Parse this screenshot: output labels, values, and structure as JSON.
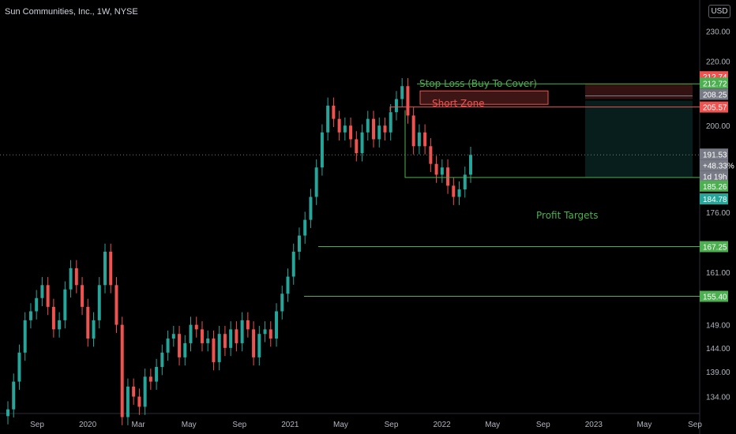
{
  "header": {
    "title": "Sun Communities, Inc., 1W, NYSE",
    "currency": "USD"
  },
  "colors": {
    "bull": "#26a69a",
    "bear": "#ef5350",
    "line": "#4caf50",
    "zone_red": "#ef5350",
    "bg": "#000000"
  },
  "annotations": {
    "stop_loss": "Stop Loss (Buy To Cover)",
    "short_zone": "Short Zone",
    "profit_targets": "Profit Targets"
  },
  "axis": {
    "price_ticks": [
      "230.00",
      "220.00",
      "200.00",
      "176.00",
      "161.00",
      "149.00",
      "144.00",
      "139.00",
      "134.00"
    ],
    "time_ticks": [
      "Sep",
      "2020",
      "Mar",
      "May",
      "Sep",
      "2021",
      "May",
      "Sep",
      "2022",
      "May",
      "Sep",
      "2023",
      "May",
      "Sep"
    ]
  },
  "price_labels": [
    {
      "text": "212.74",
      "color": "#ef5350"
    },
    {
      "text": "212.72",
      "color": "#4caf50"
    },
    {
      "text": "208.25",
      "color": "#787b86"
    },
    {
      "text": "205.57",
      "color": "#ef5350"
    },
    {
      "text": "191.53",
      "color": "#787b86"
    },
    {
      "text": "+48.33%",
      "color": "#787b86"
    },
    {
      "text": "1d 19h",
      "color": "#787b86"
    },
    {
      "text": "185.26",
      "color": "#4caf50"
    },
    {
      "text": "184.78",
      "color": "#26a69a"
    },
    {
      "text": "167.25",
      "color": "#4caf50"
    },
    {
      "text": "155.40",
      "color": "#4caf50"
    }
  ],
  "chart_data": {
    "type": "candlestick",
    "title": "Sun Communities, Inc., 1W, NYSE",
    "y_scale": "log",
    "ylim": [
      131,
      238
    ],
    "x": [
      "2019-07",
      "2019-09",
      "2020-01",
      "2020-03",
      "2020-05",
      "2020-09",
      "2021-01",
      "2021-05",
      "2021-09",
      "2022-01",
      "2022-05",
      "2022-09",
      "2023-01",
      "2023-05",
      "2023-09"
    ],
    "close_series": [
      131.5,
      137,
      143,
      150,
      152,
      155,
      158,
      153,
      148,
      150,
      157,
      162,
      158,
      153,
      146,
      150,
      158,
      166,
      158,
      149,
      130,
      136,
      134,
      132,
      138,
      137,
      140,
      143,
      146,
      147,
      142,
      145,
      149,
      148,
      145,
      146,
      141,
      147,
      144,
      148,
      145,
      150,
      148,
      142,
      147,
      148,
      146,
      152,
      156,
      160,
      166,
      170,
      174,
      180,
      188,
      198,
      206,
      202,
      198,
      200,
      196,
      192,
      198,
      202,
      196,
      200,
      198,
      204,
      208,
      212,
      203,
      194,
      198,
      194,
      189,
      186,
      188,
      183,
      180,
      182,
      186,
      191.53
    ],
    "last_price": 191.53,
    "change_pct": "+48.33%",
    "levels": {
      "stop_loss": 212.72,
      "short_zone_top": 212.74,
      "short_zone_bottom": 205.57,
      "entry": 185.26,
      "profit_target_1": 167.25,
      "profit_target_2": 155.4
    }
  }
}
